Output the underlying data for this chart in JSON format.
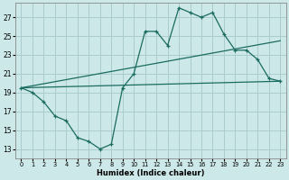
{
  "title": "",
  "xlabel": "Humidex (Indice chaleur)",
  "background_color": "#cde8e8",
  "grid_color": "#aacccc",
  "line_color": "#1a6b60",
  "xlim": [
    -0.5,
    23.5
  ],
  "ylim": [
    12.0,
    28.5
  ],
  "xticks": [
    0,
    1,
    2,
    3,
    4,
    5,
    6,
    7,
    8,
    9,
    10,
    11,
    12,
    13,
    14,
    15,
    16,
    17,
    18,
    19,
    20,
    21,
    22,
    23
  ],
  "yticks": [
    13,
    15,
    17,
    19,
    21,
    23,
    25,
    27
  ],
  "line1_x": [
    0,
    1,
    2,
    3,
    4,
    5,
    6,
    7,
    8,
    9,
    10,
    11,
    12,
    13,
    14,
    15,
    16,
    17,
    18,
    19,
    20,
    21,
    22,
    23
  ],
  "line1_y": [
    19.5,
    19.0,
    18.0,
    16.5,
    16.0,
    14.2,
    13.8,
    13.0,
    13.5,
    19.5,
    21.0,
    25.5,
    25.5,
    24.0,
    28.0,
    27.5,
    27.0,
    27.5,
    25.2,
    23.5,
    23.5,
    22.5,
    20.5,
    20.2
  ],
  "line2_x": [
    0,
    23
  ],
  "line2_y": [
    19.5,
    20.2
  ],
  "line3_x": [
    0,
    23
  ],
  "line3_y": [
    19.5,
    24.5
  ],
  "markers_x": [
    0,
    1,
    2,
    3,
    4,
    5,
    6,
    7,
    8,
    9,
    10,
    11,
    12,
    13,
    14,
    15,
    16,
    17,
    18,
    19,
    20,
    21,
    22,
    23
  ],
  "markers_y": [
    19.5,
    19.0,
    18.0,
    16.5,
    16.0,
    14.2,
    13.8,
    13.0,
    13.5,
    19.5,
    21.0,
    25.5,
    25.5,
    24.0,
    28.0,
    27.5,
    27.0,
    27.5,
    25.2,
    23.5,
    23.5,
    22.5,
    20.5,
    20.2
  ]
}
